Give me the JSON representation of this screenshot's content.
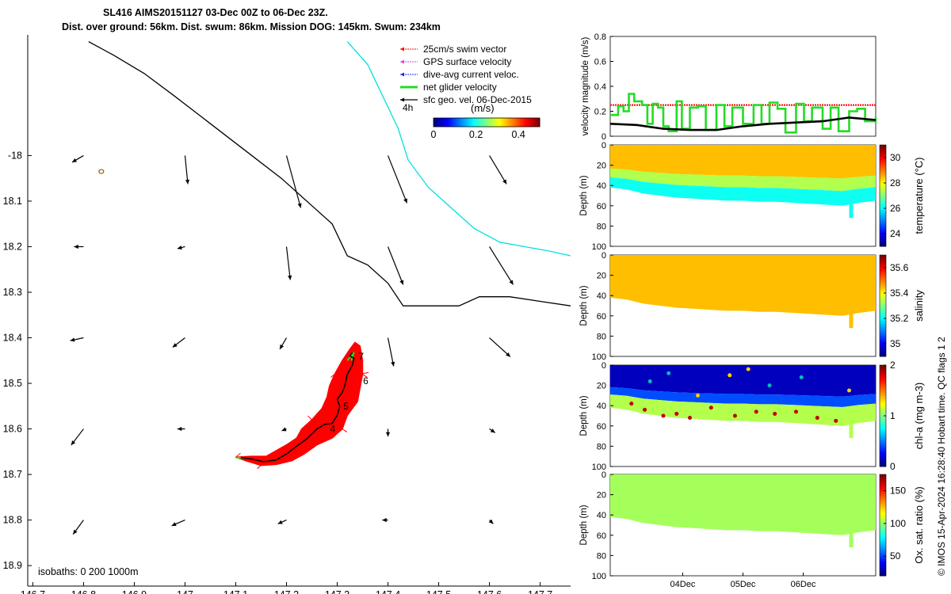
{
  "title": {
    "line1": "SL416 AIMS20151127 03-Dec 00Z to 06-Dec 23Z.",
    "line2": "Dist. over ground: 56km. Dist. swum: 86km. Mission DOG: 145km. Swum: 234km"
  },
  "credit": "© IMOS 15-Apr-2024 16:28:40 Hobart time. QC flags 1  2",
  "colors": {
    "track": "#ff0000",
    "glider_line": "#000000",
    "coast": "#00e0e0",
    "net_velocity": "#22dd22",
    "swim_vector": "#ff0000",
    "gps_velocity": "#e040e0",
    "dive_current": "#2020ff",
    "sfc_geo": "#000000"
  },
  "chart_data": [
    {
      "id": "map",
      "type": "scatter",
      "xlabel": "",
      "ylabel": "",
      "xlim": [
        146.69,
        147.76
      ],
      "ylim": [
        -18.945,
        -17.735
      ],
      "x_ticks": [
        "146.7",
        "146.8",
        "146.9",
        "147",
        "147.1",
        "147.2",
        "147.3",
        "147.4",
        "147.5",
        "147.6",
        "147.7"
      ],
      "x_tick_values": [
        146.7,
        146.8,
        146.9,
        147.0,
        147.1,
        147.2,
        147.3,
        147.4,
        147.5,
        147.6,
        147.7
      ],
      "y_ticks": [
        "-18",
        "18.1",
        "18.2",
        "18.3",
        "18.4",
        "18.5",
        "18.6",
        "18.7",
        "18.8",
        "18.9"
      ],
      "y_tick_values": [
        -18.0,
        -18.1,
        -18.2,
        -18.3,
        -18.4,
        -18.5,
        -18.6,
        -18.7,
        -18.8,
        -18.9
      ],
      "isobath_label": "isobaths: 0   200  1000m",
      "legend": {
        "items": [
          "25cm/s swim vector",
          "GPS surface velocity",
          "dive-avg current veloc.",
          "net glider velocity",
          "sfc geo. vel. 06-Dec-2015"
        ],
        "time_label": "4h",
        "colorbar_title": "(m/s)",
        "colorbar_ticks": [
          "0",
          "0.2",
          "0.4"
        ],
        "colorbar_range": [
          0,
          0.5
        ]
      },
      "isobath_0": [
        [
          146.81,
          -17.75
        ],
        [
          146.86,
          -17.78
        ],
        [
          146.92,
          -17.82
        ],
        [
          146.98,
          -17.87
        ],
        [
          147.05,
          -17.93
        ],
        [
          147.12,
          -17.99
        ],
        [
          147.19,
          -18.05
        ],
        [
          147.25,
          -18.11
        ],
        [
          147.29,
          -18.15
        ],
        [
          147.32,
          -18.22
        ],
        [
          147.36,
          -18.24
        ],
        [
          147.4,
          -18.28
        ],
        [
          147.43,
          -18.33
        ],
        [
          147.48,
          -18.33
        ],
        [
          147.54,
          -18.33
        ],
        [
          147.58,
          -18.31
        ],
        [
          147.64,
          -18.31
        ],
        [
          147.7,
          -18.32
        ],
        [
          147.76,
          -18.33
        ]
      ],
      "isobath_200": [
        [
          147.32,
          -17.75
        ],
        [
          147.36,
          -17.8
        ],
        [
          147.39,
          -17.87
        ],
        [
          147.42,
          -17.94
        ],
        [
          147.44,
          -18.01
        ],
        [
          147.48,
          -18.07
        ],
        [
          147.53,
          -18.12
        ],
        [
          147.57,
          -18.16
        ],
        [
          147.62,
          -18.19
        ],
        [
          147.67,
          -18.2
        ],
        [
          147.72,
          -18.21
        ],
        [
          147.76,
          -18.22
        ]
      ],
      "glider_track": [
        [
          147.11,
          -18.663
        ],
        [
          147.13,
          -18.666
        ],
        [
          147.155,
          -18.672
        ],
        [
          147.18,
          -18.668
        ],
        [
          147.2,
          -18.655
        ],
        [
          147.22,
          -18.638
        ],
        [
          147.24,
          -18.622
        ],
        [
          147.26,
          -18.6
        ],
        [
          147.275,
          -18.59
        ],
        [
          147.29,
          -18.588
        ],
        [
          147.3,
          -18.57
        ],
        [
          147.305,
          -18.55
        ],
        [
          147.3,
          -18.535
        ],
        [
          147.31,
          -18.52
        ],
        [
          147.315,
          -18.505
        ],
        [
          147.32,
          -18.48
        ],
        [
          147.33,
          -18.46
        ],
        [
          147.333,
          -18.445
        ],
        [
          147.325,
          -18.44
        ],
        [
          147.33,
          -18.432
        ]
      ],
      "red_envelope": [
        [
          147.1,
          -18.662
        ],
        [
          147.13,
          -18.66
        ],
        [
          147.16,
          -18.66
        ],
        [
          147.2,
          -18.635
        ],
        [
          147.22,
          -18.62
        ],
        [
          147.23,
          -18.6
        ],
        [
          147.25,
          -18.58
        ],
        [
          147.27,
          -18.555
        ],
        [
          147.28,
          -18.53
        ],
        [
          147.285,
          -18.505
        ],
        [
          147.295,
          -18.48
        ],
        [
          147.31,
          -18.45
        ],
        [
          147.325,
          -18.425
        ],
        [
          147.335,
          -18.41
        ],
        [
          147.345,
          -18.418
        ],
        [
          147.35,
          -18.45
        ],
        [
          147.35,
          -18.48
        ],
        [
          147.345,
          -18.51
        ],
        [
          147.34,
          -18.54
        ],
        [
          147.32,
          -18.57
        ],
        [
          147.31,
          -18.6
        ],
        [
          147.29,
          -18.62
        ],
        [
          147.26,
          -18.635
        ],
        [
          147.235,
          -18.655
        ],
        [
          147.21,
          -18.67
        ],
        [
          147.18,
          -18.678
        ],
        [
          147.15,
          -18.68
        ],
        [
          147.12,
          -18.67
        ]
      ],
      "day_labels": [
        {
          "label": "4",
          "x": 147.286,
          "y": -18.6
        },
        {
          "label": "5",
          "x": 147.312,
          "y": -18.55
        },
        {
          "label": "6",
          "x": 147.351,
          "y": -18.495
        },
        {
          "label": "7",
          "x": 147.342,
          "y": -18.441
        }
      ],
      "vectors": [
        {
          "x": 146.8,
          "y": -18.0,
          "u": -0.012,
          "v": -0.007
        },
        {
          "x": 147.0,
          "y": -18.0,
          "u": 0.003,
          "v": -0.03
        },
        {
          "x": 147.2,
          "y": -18.0,
          "u": 0.015,
          "v": -0.055
        },
        {
          "x": 147.4,
          "y": -18.0,
          "u": 0.02,
          "v": -0.05
        },
        {
          "x": 147.6,
          "y": -18.0,
          "u": 0.018,
          "v": -0.03
        },
        {
          "x": 146.8,
          "y": -18.2,
          "u": -0.01,
          "v": 0.0
        },
        {
          "x": 147.0,
          "y": -18.2,
          "u": -0.008,
          "v": -0.002
        },
        {
          "x": 147.2,
          "y": -18.2,
          "u": 0.004,
          "v": -0.035
        },
        {
          "x": 147.4,
          "y": -18.2,
          "u": 0.016,
          "v": -0.04
        },
        {
          "x": 147.6,
          "y": -18.2,
          "u": 0.025,
          "v": -0.04
        },
        {
          "x": 146.8,
          "y": -18.4,
          "u": -0.014,
          "v": -0.003
        },
        {
          "x": 147.0,
          "y": -18.4,
          "u": -0.013,
          "v": -0.01
        },
        {
          "x": 147.2,
          "y": -18.4,
          "u": -0.007,
          "v": -0.012
        },
        {
          "x": 147.4,
          "y": -18.4,
          "u": 0.006,
          "v": -0.03
        },
        {
          "x": 147.6,
          "y": -18.4,
          "u": 0.022,
          "v": -0.02
        },
        {
          "x": 146.8,
          "y": -18.6,
          "u": -0.013,
          "v": -0.017
        },
        {
          "x": 147.0,
          "y": -18.6,
          "u": -0.008,
          "v": 0.0
        },
        {
          "x": 147.2,
          "y": -18.6,
          "u": -0.005,
          "v": -0.002
        },
        {
          "x": 147.4,
          "y": -18.6,
          "u": 0.0,
          "v": -0.008
        },
        {
          "x": 147.6,
          "y": -18.6,
          "u": 0.006,
          "v": -0.004
        },
        {
          "x": 146.8,
          "y": -18.8,
          "u": -0.011,
          "v": -0.015
        },
        {
          "x": 147.0,
          "y": -18.8,
          "u": -0.014,
          "v": -0.006
        },
        {
          "x": 147.2,
          "y": -18.8,
          "u": -0.009,
          "v": -0.004
        },
        {
          "x": 147.4,
          "y": -18.8,
          "u": -0.006,
          "v": 0.0
        },
        {
          "x": 147.6,
          "y": -18.8,
          "u": 0.004,
          "v": -0.004
        }
      ],
      "marker": {
        "x": 146.835,
        "y": -18.035
      }
    },
    {
      "id": "velocity",
      "type": "line",
      "ylabel": "velocity magnitude (m/s)",
      "xlabel": "",
      "ylim": [
        0,
        0.8
      ],
      "y_ticks": [
        "0",
        "0.2",
        "0.4",
        "0.6",
        "0.8"
      ],
      "y_tick_values": [
        0,
        0.2,
        0.4,
        0.6,
        0.8
      ],
      "xlim": [
        0,
        1
      ],
      "swim_speed": 0.25,
      "series": [
        {
          "name": "net glider velocity",
          "x": [
            0,
            0.03,
            0.05,
            0.07,
            0.09,
            0.12,
            0.14,
            0.16,
            0.18,
            0.2,
            0.22,
            0.25,
            0.27,
            0.3,
            0.33,
            0.36,
            0.4,
            0.43,
            0.46,
            0.5,
            0.54,
            0.57,
            0.6,
            0.63,
            0.66,
            0.7,
            0.73,
            0.76,
            0.8,
            0.83,
            0.86,
            0.9,
            0.93,
            0.96,
            1.0
          ],
          "values": [
            0.17,
            0.24,
            0.2,
            0.34,
            0.28,
            0.25,
            0.1,
            0.26,
            0.23,
            0.08,
            0.04,
            0.28,
            0.06,
            0.23,
            0.24,
            0.05,
            0.25,
            0.08,
            0.23,
            0.1,
            0.25,
            0.1,
            0.27,
            0.22,
            0.03,
            0.26,
            0.12,
            0.23,
            0.06,
            0.23,
            0.04,
            0.2,
            0.22,
            0.12,
            0.15
          ]
        },
        {
          "name": "sfc geo. vel.",
          "x": [
            0,
            0.1,
            0.2,
            0.3,
            0.4,
            0.5,
            0.6,
            0.7,
            0.8,
            0.9,
            1.0
          ],
          "values": [
            0.1,
            0.09,
            0.06,
            0.05,
            0.05,
            0.08,
            0.1,
            0.11,
            0.12,
            0.15,
            0.13
          ]
        }
      ]
    },
    {
      "id": "temperature",
      "type": "heatmap",
      "ylabel": "Depth (m)",
      "cbar_label": "temperature (°C)",
      "y_ticks": [
        "0",
        "20",
        "40",
        "60",
        "80",
        "100"
      ],
      "y_tick_values": [
        0,
        20,
        40,
        60,
        80,
        100
      ],
      "cbar_ticks": [
        "24",
        "26",
        "28",
        "30"
      ],
      "cbar_tick_values": [
        24,
        26,
        28,
        30
      ],
      "cbar_range": [
        23,
        31
      ],
      "bands": [
        {
          "top": 0,
          "bottom": 32,
          "value": 28.5
        },
        {
          "top": 32,
          "bottom": 44,
          "value": 27.4
        },
        {
          "top": 44,
          "bottom": 58,
          "value": 26.1
        }
      ],
      "bottom_depth": [
        42,
        44,
        48,
        50,
        52,
        53,
        54,
        55,
        55,
        56,
        56,
        57,
        58,
        59,
        60,
        57,
        55
      ]
    },
    {
      "id": "salinity",
      "type": "heatmap",
      "ylabel": "Depth (m)",
      "cbar_label": "salinity",
      "y_ticks": [
        "0",
        "20",
        "40",
        "60",
        "80",
        "100"
      ],
      "y_tick_values": [
        0,
        20,
        40,
        60,
        80,
        100
      ],
      "cbar_ticks": [
        "35",
        "35.2",
        "35.4",
        "35.6"
      ],
      "cbar_tick_values": [
        35,
        35.2,
        35.4,
        35.6
      ],
      "cbar_range": [
        34.9,
        35.7
      ],
      "bands": [
        {
          "top": 0,
          "bottom": 60,
          "value": 35.45
        }
      ],
      "bottom_depth": [
        42,
        44,
        48,
        50,
        52,
        53,
        54,
        55,
        55,
        56,
        56,
        57,
        58,
        59,
        60,
        57,
        55
      ]
    },
    {
      "id": "chla",
      "type": "heatmap",
      "ylabel": "Depth (m)",
      "cbar_label": "chl-a (mg m-3)",
      "y_ticks": [
        "0",
        "20",
        "40",
        "60",
        "80",
        "100"
      ],
      "y_tick_values": [
        0,
        20,
        40,
        60,
        80,
        100
      ],
      "cbar_ticks": [
        "0",
        "1",
        "2"
      ],
      "cbar_tick_values": [
        0,
        1,
        2
      ],
      "cbar_range": [
        0,
        2
      ],
      "bands": [
        {
          "top": 0,
          "bottom": 30,
          "value": 0.12
        },
        {
          "top": 30,
          "bottom": 40,
          "value": 0.4
        },
        {
          "top": 40,
          "bottom": 58,
          "value": 1.1
        }
      ],
      "bottom_depth": [
        42,
        44,
        48,
        50,
        52,
        53,
        54,
        55,
        55,
        56,
        56,
        57,
        58,
        59,
        60,
        57,
        55
      ]
    },
    {
      "id": "oxygen",
      "type": "heatmap",
      "ylabel": "Depth (m)",
      "cbar_label": "Ox. sat. ratio (%)",
      "y_ticks": [
        "0",
        "20",
        "40",
        "60",
        "80",
        "100"
      ],
      "y_tick_values": [
        0,
        20,
        40,
        60,
        80,
        100
      ],
      "cbar_ticks": [
        "50",
        "100",
        "150"
      ],
      "cbar_tick_values": [
        50,
        100,
        150
      ],
      "cbar_range": [
        20,
        175
      ],
      "bands": [
        {
          "top": 0,
          "bottom": 60,
          "value": 103
        }
      ],
      "bottom_depth": [
        42,
        44,
        48,
        50,
        52,
        53,
        54,
        55,
        55,
        56,
        56,
        57,
        58,
        59,
        60,
        57,
        55
      ],
      "x_ticks": [
        "04Dec",
        "05Dec",
        "06Dec"
      ],
      "x_tick_values": [
        0.273,
        0.5,
        0.727
      ]
    }
  ]
}
